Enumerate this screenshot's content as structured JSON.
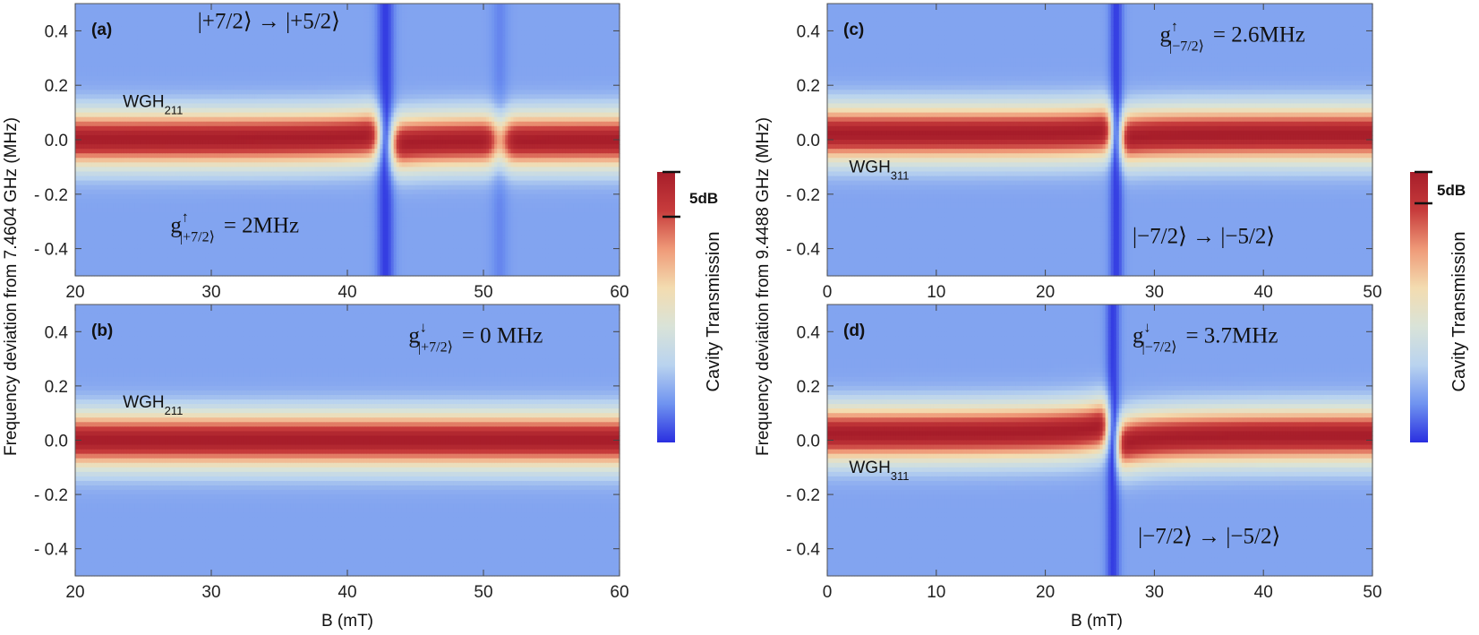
{
  "colorscale": {
    "stops": [
      "#2a2fe0",
      "#6f93f0",
      "#b9d3ef",
      "#d9e3d8",
      "#f3dcb0",
      "#ef9a78",
      "#c73c3c",
      "#a71d2a"
    ],
    "label": "Cavity Transmission",
    "range_label": "5dB"
  },
  "chart_data": [
    {
      "type": "heatmap",
      "panel_label": "(a)",
      "xlim": [
        20,
        60
      ],
      "ylim": [
        -0.5,
        0.5
      ],
      "xticks": [
        "20",
        "30",
        "40",
        "50",
        "60"
      ],
      "yticks": [
        "0.4",
        "0.2",
        "0.0",
        "- 0.2",
        "- 0.4"
      ],
      "ytick_values": [
        0.4,
        0.2,
        0.0,
        -0.2,
        -0.4
      ],
      "xtick_values": [
        20,
        30,
        40,
        50,
        60
      ],
      "xlabel": "",
      "ylabel": "Frequency deviation from 7.4604 GHz (MHz)",
      "mode_label": {
        "main": "WGH",
        "sub": "211",
        "pos": [
          23.5,
          0.12
        ]
      },
      "mode_center_mhz": 0.0,
      "resonances": [
        {
          "B0_mT": 42.8,
          "g_MHz": 0.09,
          "dip": 1.0
        },
        {
          "B0_mT": 51.2,
          "g_MHz": 0.02,
          "dip": 0.35
        }
      ],
      "annotations": [
        {
          "id": "transition",
          "text": "|+7/2⟩ → |+5/2⟩",
          "pos": [
            29,
            0.41
          ]
        },
        {
          "id": "coupling",
          "base": "g",
          "sup": "↑",
          "sub": "|+7/2⟩",
          "value": "= 2MHz",
          "pos": [
            27,
            -0.34
          ]
        }
      ]
    },
    {
      "type": "heatmap",
      "panel_label": "(b)",
      "xlim": [
        20,
        60
      ],
      "ylim": [
        -0.5,
        0.5
      ],
      "xticks": [
        "20",
        "30",
        "40",
        "50",
        "60"
      ],
      "yticks": [
        "0.4",
        "0.2",
        "0.0",
        "- 0.2",
        "- 0.4"
      ],
      "ytick_values": [
        0.4,
        0.2,
        0.0,
        -0.2,
        -0.4
      ],
      "xtick_values": [
        20,
        30,
        40,
        50,
        60
      ],
      "xlabel": "B (mT)",
      "ylabel": "",
      "mode_label": {
        "main": "WGH",
        "sub": "211",
        "pos": [
          23.5,
          0.12
        ]
      },
      "mode_center_mhz": 0.0,
      "resonances": [],
      "annotations": [
        {
          "id": "coupling",
          "base": "g",
          "sup": "↓",
          "sub": "|+7/2⟩",
          "value": "=  0  MHz",
          "pos": [
            44.5,
            0.36
          ]
        }
      ]
    },
    {
      "type": "heatmap",
      "panel_label": "(c)",
      "xlim": [
        0,
        50
      ],
      "ylim": [
        -0.5,
        0.5
      ],
      "xticks": [
        "0",
        "10",
        "20",
        "30",
        "40",
        "50"
      ],
      "yticks": [
        "0.4",
        "0.2",
        "0.0",
        "- 0.2",
        "- 0.4"
      ],
      "ytick_values": [
        0.4,
        0.2,
        0.0,
        -0.2,
        -0.4
      ],
      "xtick_values": [
        0,
        10,
        20,
        30,
        40,
        50
      ],
      "xlabel": "",
      "ylabel": "Frequency deviation from 9.4488 GHz (MHz)",
      "mode_label": {
        "main": "WGH",
        "sub": "311",
        "pos": [
          2.0,
          -0.12
        ]
      },
      "mode_center_mhz": 0.02,
      "resonances": [
        {
          "B0_mT": 26.5,
          "g_MHz": 0.08,
          "dip": 1.0
        }
      ],
      "annotations": [
        {
          "id": "coupling",
          "base": "g",
          "sup": "↑",
          "sub": "|−7/2⟩",
          "value": "= 2.6MHz",
          "pos": [
            30.5,
            0.36
          ]
        },
        {
          "id": "transition",
          "text": "|−7/2⟩ → |−5/2⟩",
          "pos": [
            28,
            -0.38
          ]
        }
      ]
    },
    {
      "type": "heatmap",
      "panel_label": "(d)",
      "xlim": [
        0,
        50
      ],
      "ylim": [
        -0.5,
        0.5
      ],
      "xticks": [
        "0",
        "10",
        "20",
        "30",
        "40",
        "50"
      ],
      "yticks": [
        "0.4",
        "0.2",
        "0.0",
        "- 0.2",
        "- 0.4"
      ],
      "ytick_values": [
        0.4,
        0.2,
        0.0,
        -0.2,
        -0.4
      ],
      "xtick_values": [
        0,
        10,
        20,
        30,
        40,
        50
      ],
      "xlabel": "B (mT)",
      "ylabel": "",
      "mode_label": {
        "main": "WGH",
        "sub": "311",
        "pos": [
          2.0,
          -0.12
        ]
      },
      "mode_center_mhz": 0.02,
      "resonances": [
        {
          "B0_mT": 26.2,
          "g_MHz": 0.13,
          "dip": 1.0
        }
      ],
      "annotations": [
        {
          "id": "coupling",
          "base": "g",
          "sup": "↓",
          "sub": "|−7/2⟩",
          "value": "= 3.7MHz",
          "pos": [
            28,
            0.36
          ]
        },
        {
          "id": "transition",
          "text": "|−7/2⟩ → |−5/2⟩",
          "pos": [
            28.5,
            -0.38
          ]
        }
      ]
    }
  ]
}
